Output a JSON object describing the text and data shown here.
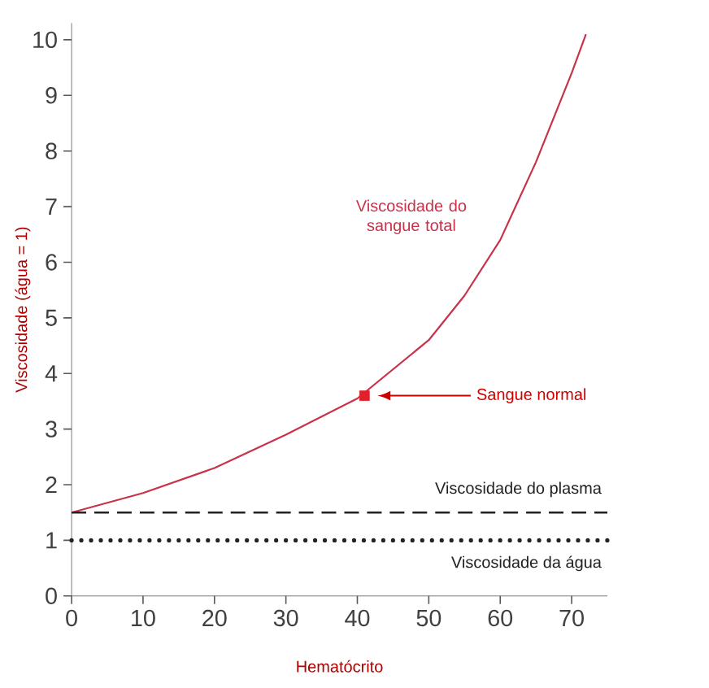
{
  "chart_data": {
    "type": "line",
    "xlabel": "Hematócrito",
    "ylabel": "Viscosidade (água = 1)",
    "xlim": [
      0,
      75
    ],
    "ylim": [
      0,
      10.3
    ],
    "xticks": [
      0,
      10,
      20,
      30,
      40,
      50,
      60,
      70
    ],
    "yticks": [
      0,
      1,
      2,
      3,
      4,
      5,
      6,
      7,
      8,
      9,
      10
    ],
    "grid": false,
    "legend": false,
    "marker": "none",
    "line_style": "solid",
    "series": [
      {
        "name": "Viscosidade do sangue total",
        "color": "#c8324a",
        "x": [
          0,
          10,
          20,
          30,
          40,
          50,
          55,
          60,
          65,
          70,
          72
        ],
        "values": [
          1.5,
          1.85,
          2.3,
          2.9,
          3.55,
          4.6,
          5.4,
          6.4,
          7.8,
          9.4,
          10.1
        ]
      },
      {
        "type": "scatter",
        "marker": "square",
        "color": "#e0202a",
        "x": [
          41
        ],
        "values": [
          3.6
        ]
      }
    ],
    "ref_lines": [
      {
        "axis": "y",
        "value": 1.5,
        "label": "Viscosidade do plasma",
        "color": "#222222",
        "line_style": "dashed"
      },
      {
        "axis": "y",
        "value": 1,
        "label": "Viscosidade da água",
        "color": "#222222",
        "line_style": "dotted"
      }
    ],
    "annotations": [
      "Sangue normal"
    ]
  }
}
